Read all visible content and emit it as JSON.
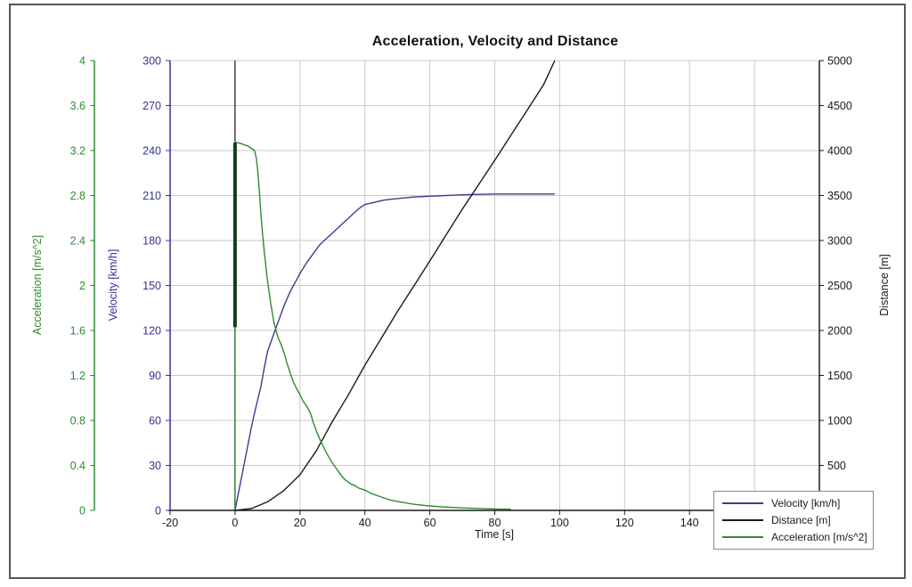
{
  "window": {
    "background": "#ffffff",
    "border_color": "#575757"
  },
  "chart_data": {
    "type": "line",
    "title": "Acceleration, Velocity and Distance",
    "xlabel": "Time [s]",
    "x_range": [
      -20,
      180
    ],
    "x_tick_step": 20,
    "x_labeled_ticks": [
      -20,
      0,
      20,
      40,
      60,
      80,
      100,
      120,
      140
    ],
    "grid": true,
    "grid_color": "#c9c9c9",
    "axes": [
      {
        "id": "acceleration",
        "label": "Acceleration [m/s^2]",
        "side": "left-outer",
        "range": [
          0,
          4
        ],
        "tick_step": 0.4,
        "color": "#2e8b2e"
      },
      {
        "id": "velocity",
        "label": "Velocity [km/h]",
        "side": "left",
        "range": [
          0,
          300
        ],
        "tick_step": 30,
        "color": "#333399"
      },
      {
        "id": "distance",
        "label": "Distance [m]",
        "side": "right",
        "range": [
          0,
          5000
        ],
        "tick_step": 500,
        "color": "#1a1a1a"
      }
    ],
    "series": [
      {
        "name": "Velocity [km/h]",
        "axis": "velocity",
        "color": "#3b3b8e",
        "points": [
          [
            0,
            0
          ],
          [
            1,
            11
          ],
          [
            2,
            22
          ],
          [
            3,
            33
          ],
          [
            4,
            44
          ],
          [
            5,
            55
          ],
          [
            6,
            65
          ],
          [
            7,
            74
          ],
          [
            8,
            83
          ],
          [
            9,
            95
          ],
          [
            10,
            106
          ],
          [
            11,
            112
          ],
          [
            12,
            118
          ],
          [
            13,
            124
          ],
          [
            14,
            130
          ],
          [
            15,
            136
          ],
          [
            16,
            141
          ],
          [
            17,
            146
          ],
          [
            18,
            150
          ],
          [
            19,
            154
          ],
          [
            20,
            158
          ],
          [
            22,
            165
          ],
          [
            24,
            171
          ],
          [
            26,
            177
          ],
          [
            28,
            181
          ],
          [
            30,
            185
          ],
          [
            32,
            189
          ],
          [
            34,
            193
          ],
          [
            36,
            197
          ],
          [
            38,
            201
          ],
          [
            40,
            204
          ],
          [
            42,
            205
          ],
          [
            44,
            206
          ],
          [
            46,
            207
          ],
          [
            48,
            207.5
          ],
          [
            50,
            208
          ],
          [
            55,
            209
          ],
          [
            60,
            209.5
          ],
          [
            65,
            210
          ],
          [
            70,
            210.5
          ],
          [
            75,
            210.8
          ],
          [
            80,
            211
          ],
          [
            85,
            211
          ],
          [
            90,
            211
          ],
          [
            95,
            211
          ],
          [
            98.5,
            211
          ]
        ]
      },
      {
        "name": "Distance [m]",
        "axis": "distance",
        "color": "#1a1a1a",
        "points": [
          [
            0,
            0
          ],
          [
            5,
            20
          ],
          [
            10,
            95
          ],
          [
            15,
            220
          ],
          [
            20,
            396
          ],
          [
            25,
            660
          ],
          [
            30,
            990
          ],
          [
            35,
            1290
          ],
          [
            40,
            1614
          ],
          [
            45,
            1910
          ],
          [
            50,
            2208
          ],
          [
            55,
            2490
          ],
          [
            60,
            2772
          ],
          [
            65,
            3060
          ],
          [
            70,
            3347
          ],
          [
            75,
            3620
          ],
          [
            80,
            3891
          ],
          [
            85,
            4170
          ],
          [
            90,
            4450
          ],
          [
            95,
            4730
          ],
          [
            98.5,
            5000
          ]
        ]
      },
      {
        "name": "Acceleration [m/s^2]",
        "axis": "acceleration",
        "color": "#2e8b2e",
        "points": [
          [
            0,
            0
          ],
          [
            0,
            3.27
          ],
          [
            1,
            3.27
          ],
          [
            2,
            3.26
          ],
          [
            3,
            3.25
          ],
          [
            4,
            3.24
          ],
          [
            5,
            3.22
          ],
          [
            6,
            3.2
          ],
          [
            6.5,
            3.14
          ],
          [
            7,
            3.02
          ],
          [
            7.5,
            2.84
          ],
          [
            8,
            2.62
          ],
          [
            8.5,
            2.45
          ],
          [
            9,
            2.3
          ],
          [
            10,
            2.04
          ],
          [
            11,
            1.84
          ],
          [
            12,
            1.67
          ],
          [
            13,
            1.56
          ],
          [
            13.5,
            1.52
          ],
          [
            14,
            1.49
          ],
          [
            15,
            1.41
          ],
          [
            16,
            1.31
          ],
          [
            17,
            1.22
          ],
          [
            18,
            1.14
          ],
          [
            19,
            1.08
          ],
          [
            20,
            1.03
          ],
          [
            21,
            0.97
          ],
          [
            22,
            0.93
          ],
          [
            23,
            0.88
          ],
          [
            23.5,
            0.84
          ],
          [
            24,
            0.79
          ],
          [
            25,
            0.71
          ],
          [
            26,
            0.64
          ],
          [
            27,
            0.58
          ],
          [
            28,
            0.52
          ],
          [
            29,
            0.47
          ],
          [
            30,
            0.42
          ],
          [
            31,
            0.38
          ],
          [
            32,
            0.34
          ],
          [
            33,
            0.3
          ],
          [
            34,
            0.27
          ],
          [
            35,
            0.25
          ],
          [
            36,
            0.23
          ],
          [
            37,
            0.22
          ],
          [
            38,
            0.2
          ],
          [
            40,
            0.18
          ],
          [
            42,
            0.15
          ],
          [
            44,
            0.13
          ],
          [
            46,
            0.11
          ],
          [
            48,
            0.09
          ],
          [
            50,
            0.08
          ],
          [
            52,
            0.07
          ],
          [
            55,
            0.055
          ],
          [
            58,
            0.045
          ],
          [
            60,
            0.04
          ],
          [
            63,
            0.033
          ],
          [
            66,
            0.028
          ],
          [
            70,
            0.022
          ],
          [
            74,
            0.018
          ],
          [
            78,
            0.014
          ],
          [
            82,
            0.011
          ],
          [
            85,
            0.01
          ]
        ]
      }
    ],
    "annotations": {
      "zero_time_line": {
        "t": 0,
        "color": "#1a1a1a"
      },
      "launch_band": {
        "t": 0,
        "axis": "acceleration",
        "from": 1.63,
        "to": 3.27,
        "color": "#143f14",
        "width": 4
      }
    },
    "legend": {
      "position": "bottom-right",
      "entries": [
        "Velocity [km/h]",
        "Distance [m]",
        "Acceleration [m/s^2]"
      ]
    }
  }
}
